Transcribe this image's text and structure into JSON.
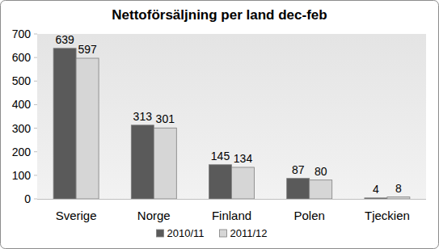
{
  "chart_data": {
    "type": "bar",
    "title": "Nettoförsäljning per land dec-feb",
    "categories": [
      "Sverige",
      "Norge",
      "Finland",
      "Polen",
      "Tjeckien"
    ],
    "series": [
      {
        "name": "2010/11",
        "color": "#5a5a5a",
        "values": [
          639,
          313,
          145,
          87,
          4
        ]
      },
      {
        "name": "2011/12",
        "color": "#d6d6d6",
        "values": [
          597,
          301,
          134,
          80,
          8
        ]
      }
    ],
    "ylim": [
      0,
      700
    ],
    "yticks": [
      0,
      100,
      200,
      300,
      400,
      500,
      600,
      700
    ],
    "grid": false,
    "data_labels": true,
    "legend": "bottom"
  }
}
